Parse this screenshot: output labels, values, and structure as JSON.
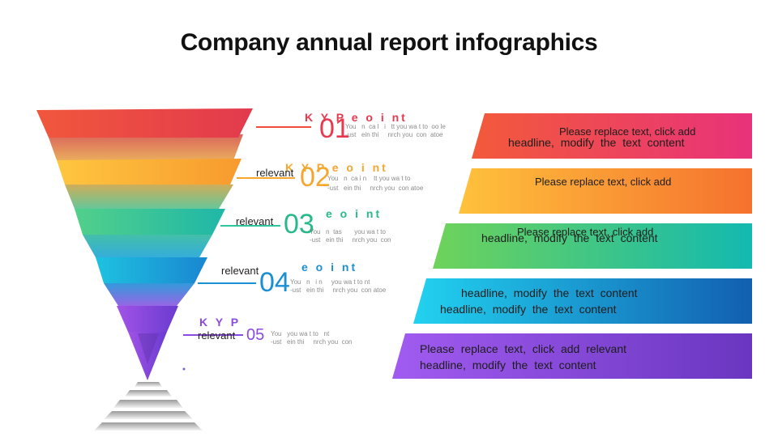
{
  "title": "Company annual report infographics",
  "colors": {
    "red": "#ef4a3a",
    "orange": "#ffb23a",
    "green": "#2ec59a",
    "blue": "#1aa7d8",
    "purple": "#8a4be0"
  },
  "items": [
    {
      "number": "01",
      "kp": "K  Y P  e    o i nt",
      "relevant": "",
      "banner_line1": "Please replace text, click add",
      "banner_line2": "headline,   modify  the  text  content"
    },
    {
      "number": "02",
      "kp": "K  Y P  e    o i nt",
      "relevant": "relevant",
      "banner_line1": "Please replace text, click add",
      "banner_line2": ""
    },
    {
      "number": "03",
      "kp": "e    o i nt",
      "relevant": "relevant",
      "banner_line1": "Please replace text, click add",
      "banner_line2": "headline,   modify  the  text  content"
    },
    {
      "number": "04",
      "kp": "e    o i nt",
      "relevant": "relevant",
      "banner_line1": "headline,   modify  the  text  content",
      "banner_line2": "headline,   modify  the  text  content"
    },
    {
      "number": "05",
      "kp": "K  Y P",
      "relevant": "relevant",
      "banner_line1": "Please  replace  text,  click  add   relevant",
      "banner_line2": "headline,   modify  the  text  content"
    }
  ]
}
